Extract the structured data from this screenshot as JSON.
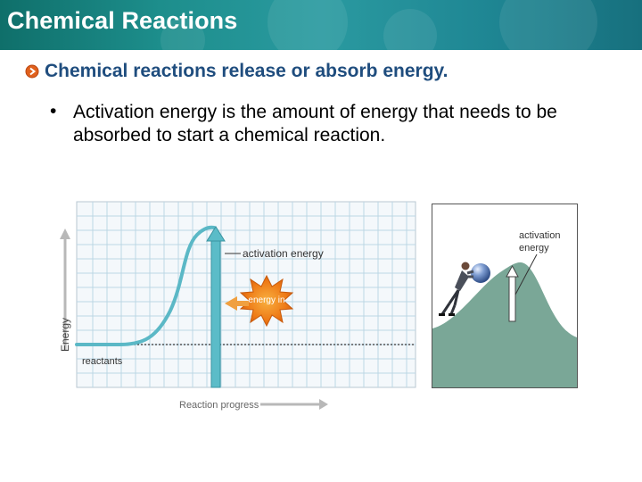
{
  "slide": {
    "title": "Chemical Reactions",
    "heading": "Chemical reactions release or absorb energy.",
    "bullet": "Activation energy is the amount of energy that needs to be absorbed to start a chemical reaction."
  },
  "graph": {
    "activation_label": "activation energy",
    "energy_in_label": "energy in",
    "yaxis_label": "Energy",
    "reactants_label": "reactants",
    "xaxis_label": "Reaction progress"
  },
  "hill": {
    "label_line1": "activation",
    "label_line2": "energy"
  },
  "colors": {
    "title_bar": "#1d8e8c",
    "heading": "#1f4d7e",
    "curve": "#5bb8c6",
    "arrow": "#5bbcc8",
    "burst": "#f08a1e",
    "hill": "#7aa797"
  },
  "icons": [
    "bullet-arrow-icon",
    "energy-in-burst-icon",
    "person-pushing-icon",
    "boulder-icon"
  ]
}
